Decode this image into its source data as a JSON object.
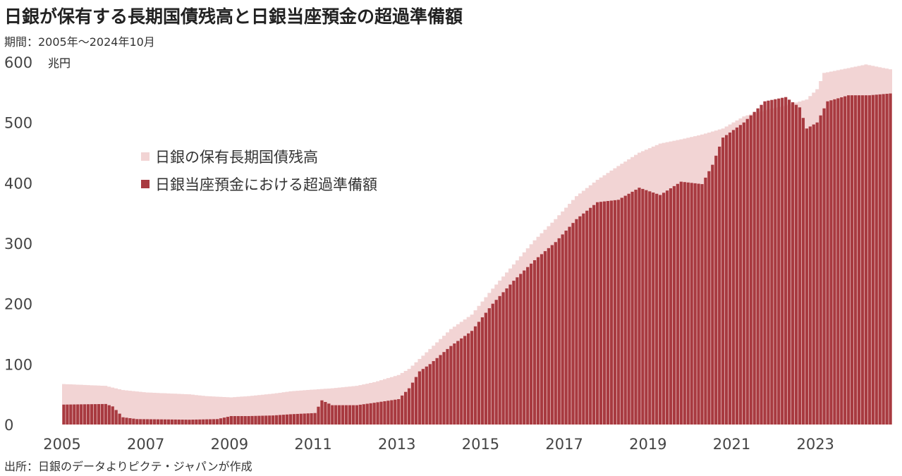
{
  "title": "日銀が保有する長期国債残高と日銀当座預金の超過準備額",
  "subtitle": "期間：2005年～2024年10月",
  "source": "出所：日銀のデータよりピクテ・ジャパンが作成",
  "chart_data": {
    "type": "bar",
    "unit": "兆円",
    "ylim": [
      0,
      600
    ],
    "yticks": [
      0,
      100,
      200,
      300,
      400,
      500,
      600
    ],
    "xticks": [
      "2005",
      "2007",
      "2009",
      "2011",
      "2013",
      "2015",
      "2017",
      "2019",
      "2021",
      "2023"
    ],
    "x_range": [
      "2005-01",
      "2024-10"
    ],
    "grid": false,
    "legend_position": "upper-left",
    "colors": {
      "holdings": "#f2d4d4",
      "excess": "#a83a40"
    },
    "series": [
      {
        "name": "日銀の保有長期国債残高",
        "style": "area",
        "keypoints": [
          [
            "2005-01",
            67
          ],
          [
            "2006-01",
            64
          ],
          [
            "2006-06",
            57
          ],
          [
            "2007-01",
            53
          ],
          [
            "2008-01",
            50
          ],
          [
            "2008-06",
            47
          ],
          [
            "2009-01",
            45
          ],
          [
            "2009-06",
            47
          ],
          [
            "2010-01",
            51
          ],
          [
            "2010-06",
            55
          ],
          [
            "2011-01",
            58
          ],
          [
            "2011-06",
            60
          ],
          [
            "2012-01",
            64
          ],
          [
            "2012-06",
            70
          ],
          [
            "2013-01",
            82
          ],
          [
            "2013-04",
            92
          ],
          [
            "2013-10",
            125
          ],
          [
            "2014-04",
            158
          ],
          [
            "2014-10",
            182
          ],
          [
            "2015-04",
            225
          ],
          [
            "2015-10",
            265
          ],
          [
            "2016-04",
            305
          ],
          [
            "2016-10",
            340
          ],
          [
            "2017-04",
            378
          ],
          [
            "2017-10",
            405
          ],
          [
            "2018-04",
            428
          ],
          [
            "2018-10",
            450
          ],
          [
            "2019-04",
            465
          ],
          [
            "2019-10",
            472
          ],
          [
            "2020-04",
            480
          ],
          [
            "2020-10",
            490
          ],
          [
            "2021-04",
            510
          ],
          [
            "2021-10",
            520
          ],
          [
            "2022-04",
            528
          ],
          [
            "2022-10",
            538
          ],
          [
            "2023-01",
            555
          ],
          [
            "2023-03",
            582
          ],
          [
            "2023-10",
            590
          ],
          [
            "2024-03",
            596
          ],
          [
            "2024-10",
            588
          ]
        ]
      },
      {
        "name": "日銀当座預金における超過準備額",
        "style": "bar",
        "keypoints": [
          [
            "2005-01",
            33
          ],
          [
            "2006-01",
            34
          ],
          [
            "2006-03",
            30
          ],
          [
            "2006-06",
            12
          ],
          [
            "2006-10",
            9
          ],
          [
            "2008-01",
            8
          ],
          [
            "2008-09",
            9
          ],
          [
            "2009-01",
            14
          ],
          [
            "2009-06",
            14
          ],
          [
            "2010-01",
            15
          ],
          [
            "2010-06",
            17
          ],
          [
            "2011-01",
            19
          ],
          [
            "2011-03",
            40
          ],
          [
            "2011-06",
            32
          ],
          [
            "2012-01",
            32
          ],
          [
            "2012-06",
            36
          ],
          [
            "2013-01",
            42
          ],
          [
            "2013-04",
            60
          ],
          [
            "2013-07",
            88
          ],
          [
            "2013-10",
            100
          ],
          [
            "2014-04",
            130
          ],
          [
            "2014-10",
            155
          ],
          [
            "2015-04",
            200
          ],
          [
            "2015-10",
            238
          ],
          [
            "2016-04",
            272
          ],
          [
            "2016-10",
            302
          ],
          [
            "2017-04",
            340
          ],
          [
            "2017-10",
            368
          ],
          [
            "2018-04",
            372
          ],
          [
            "2018-10",
            392
          ],
          [
            "2019-04",
            380
          ],
          [
            "2019-10",
            402
          ],
          [
            "2020-04",
            398
          ],
          [
            "2020-07",
            430
          ],
          [
            "2020-10",
            475
          ],
          [
            "2021-04",
            500
          ],
          [
            "2021-10",
            535
          ],
          [
            "2022-04",
            542
          ],
          [
            "2022-08",
            525
          ],
          [
            "2022-10",
            490
          ],
          [
            "2023-01",
            500
          ],
          [
            "2023-04",
            535
          ],
          [
            "2023-10",
            545
          ],
          [
            "2024-04",
            545
          ],
          [
            "2024-10",
            548
          ]
        ]
      }
    ]
  }
}
